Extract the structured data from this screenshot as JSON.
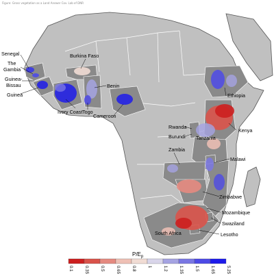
{
  "caption": "Figure: Gross vegetation as a Land Answer Cov. Lab of DNR",
  "legend": {
    "title": "P/E",
    "subscript": "p",
    "ticks": [
      "0.1",
      "0.35",
      "0.5",
      "0.65",
      "0.8",
      "1",
      "1.2",
      "1.35",
      "1.5",
      "1.65",
      "5.25"
    ],
    "colors": [
      "#cc1f1f",
      "#d9534a",
      "#e58a80",
      "#efc0b5",
      "#f1dcd4",
      "#d9d5ea",
      "#a5a3e2",
      "#7a77e3",
      "#4d4ae6",
      "#1d1bea"
    ]
  },
  "colors": {
    "ocean": "#ffffff",
    "land": "#c0c0c0",
    "study_country": "#8a8a8a",
    "border": "#ffffff",
    "coast": "#555555"
  },
  "labels": [
    "Senegal",
    "The Gambia",
    "Guinea-\nBissau",
    "Guinea",
    "Ivory Coast",
    "Burkina Faso",
    "Benin",
    "Togo",
    "Cameroon",
    "Ethiopia",
    "Rwanda",
    "Burundi",
    "Tanzania",
    "Kenya",
    "Malawi",
    "Zambia",
    "Zimbabwe",
    "Mozambique",
    "Swaziland",
    "Lesotho",
    "South Africa"
  ]
}
